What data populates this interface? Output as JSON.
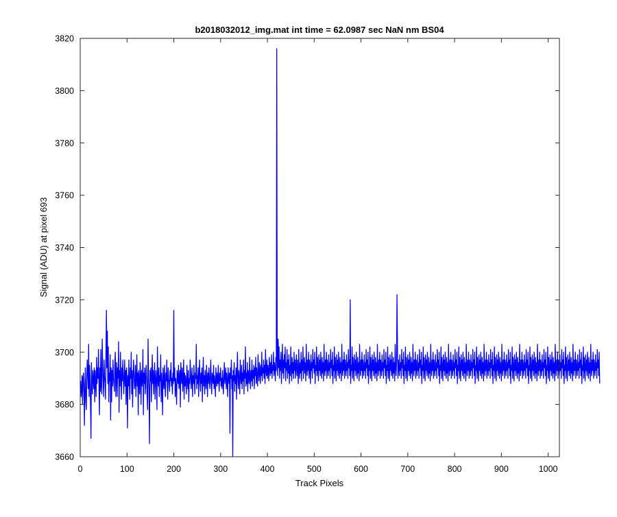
{
  "chart_data": {
    "type": "line",
    "title": "b2018032012_img.mat int time = 62.0987 sec  NaN nm BS04",
    "xlabel": "Track Pixels",
    "ylabel": "Signal (ADU) at pixel 693",
    "xlim": [
      0,
      1024
    ],
    "ylim": [
      3660,
      3820
    ],
    "xticks": [
      0,
      100,
      200,
      300,
      400,
      500,
      600,
      700,
      800,
      900,
      1000
    ],
    "yticks": [
      3660,
      3680,
      3700,
      3720,
      3740,
      3760,
      3780,
      3800,
      3820
    ],
    "grid": false,
    "box": true,
    "line_color": "#0000ff",
    "series": [
      {
        "x_start": 1,
        "x_step": 1,
        "y": [
          3689,
          3683,
          3686,
          3691,
          3680,
          3690,
          3692,
          3685,
          3672,
          3688,
          3694,
          3681,
          3678,
          3690,
          3697,
          3692,
          3686,
          3703,
          3683,
          3695,
          3690,
          3680,
          3667,
          3696,
          3688,
          3684,
          3693,
          3690,
          3686,
          3694,
          3681,
          3693,
          3688,
          3683,
          3698,
          3688,
          3694,
          3690,
          3701,
          3689,
          3676,
          3694,
          3685,
          3701,
          3687,
          3684,
          3705,
          3695,
          3689,
          3683,
          3697,
          3691,
          3688,
          3682,
          3700,
          3716,
          3694,
          3708,
          3688,
          3702,
          3681,
          3692,
          3689,
          3699,
          3674,
          3694,
          3681,
          3693,
          3687,
          3697,
          3690,
          3688,
          3685,
          3696,
          3700,
          3683,
          3690,
          3696,
          3683,
          3694,
          3690,
          3704,
          3677,
          3693,
          3687,
          3700,
          3690,
          3682,
          3694,
          3689,
          3697,
          3691,
          3684,
          3690,
          3697,
          3687,
          3693,
          3680,
          3694,
          3690,
          3671,
          3691,
          3687,
          3697,
          3688,
          3682,
          3694,
          3690,
          3700,
          3684,
          3693,
          3679,
          3690,
          3697,
          3692,
          3686,
          3688,
          3695,
          3683,
          3690,
          3699,
          3687,
          3692,
          3676,
          3693,
          3689,
          3684,
          3696,
          3691,
          3680,
          3693,
          3687,
          3690,
          3701,
          3676,
          3692,
          3688,
          3694,
          3684,
          3690,
          3695,
          3689,
          3683,
          3678,
          3705,
          3690,
          3686,
          3665,
          3693,
          3689,
          3694,
          3681,
          3690,
          3699,
          3688,
          3693,
          3684,
          3691,
          3696,
          3682,
          3689,
          3693,
          3687,
          3678,
          3702,
          3690,
          3687,
          3694,
          3683,
          3691,
          3689,
          3699,
          3681,
          3692,
          3688,
          3676,
          3694,
          3690,
          3686,
          3695,
          3688,
          3683,
          3692,
          3689,
          3697,
          3687,
          3682,
          3694,
          3690,
          3688,
          3685,
          3693,
          3689,
          3696,
          3687,
          3690,
          3684,
          3692,
          3688,
          3716,
          3689,
          3694,
          3683,
          3690,
          3687,
          3680,
          3693,
          3691,
          3688,
          3695,
          3686,
          3690,
          3693,
          3679,
          3696,
          3691,
          3688,
          3694,
          3685,
          3690,
          3697,
          3682,
          3692,
          3687,
          3691,
          3688,
          3684,
          3695,
          3690,
          3686,
          3693,
          3681,
          3690,
          3688,
          3697,
          3692,
          3686,
          3690,
          3694,
          3683,
          3691,
          3688,
          3695,
          3689,
          3684,
          3692,
          3690,
          3703,
          3686,
          3691,
          3688,
          3694,
          3683,
          3691,
          3697,
          3689,
          3685,
          3692,
          3688,
          3694,
          3681,
          3690,
          3698,
          3687,
          3691,
          3684,
          3693,
          3689,
          3686,
          3695,
          3690,
          3683,
          3692,
          3688,
          3694,
          3690,
          3686,
          3691,
          3697,
          3688,
          3684,
          3692,
          3690,
          3688,
          3695,
          3686,
          3691,
          3688,
          3683,
          3694,
          3690,
          3687,
          3692,
          3688,
          3695,
          3689,
          3685,
          3692,
          3689,
          3694,
          3687,
          3690,
          3686,
          3693,
          3689,
          3684,
          3691,
          3696,
          3688,
          3690,
          3694,
          3686,
          3692,
          3689,
          3683,
          3694,
          3690,
          3688,
          3692,
          3669,
          3694,
          3690,
          3697,
          3686,
          3691,
          3660,
          3693,
          3689,
          3696,
          3685,
          3691,
          3688,
          3694,
          3682,
          3692,
          3700,
          3689,
          3686,
          3693,
          3690,
          3684,
          3697,
          3691,
          3688,
          3695,
          3686,
          3692,
          3689,
          3697,
          3684,
          3693,
          3690,
          3702,
          3687,
          3692,
          3688,
          3696,
          3685,
          3693,
          3691,
          3688,
          3698,
          3690,
          3686,
          3693,
          3689,
          3697,
          3687,
          3693,
          3690,
          3695,
          3686,
          3694,
          3691,
          3698,
          3688,
          3694,
          3690,
          3687,
          3699,
          3692,
          3689,
          3696,
          3693,
          3688,
          3695,
          3691,
          3700,
          3689,
          3694,
          3692,
          3697,
          3690,
          3695,
          3688,
          3701,
          3693,
          3691,
          3697,
          3690,
          3695,
          3693,
          3689,
          3698,
          3694,
          3691,
          3696,
          3692,
          3699,
          3690,
          3695,
          3693,
          3700,
          3691,
          3696,
          3694,
          3689,
          3698,
          3693,
          3816,
          3697,
          3691,
          3705,
          3694,
          3702,
          3690,
          3697,
          3693,
          3700,
          3688,
          3695,
          3703,
          3692,
          3697,
          3690,
          3699,
          3694,
          3702,
          3689,
          3696,
          3693,
          3701,
          3690,
          3697,
          3692,
          3699,
          3688,
          3695,
          3691,
          3702,
          3694,
          3689,
          3698,
          3692,
          3696,
          3690,
          3700,
          3693,
          3697,
          3690,
          3695,
          3699,
          3691,
          3697,
          3693,
          3688,
          3701,
          3694,
          3690,
          3696,
          3692,
          3700,
          3689,
          3697,
          3693,
          3702,
          3690,
          3695,
          3698,
          3692,
          3696,
          3689,
          3703,
          3694,
          3691,
          3697,
          3693,
          3700,
          3690,
          3697,
          3694,
          3688,
          3699,
          3693,
          3696,
          3690,
          3701,
          3694,
          3697,
          3692,
          3700,
          3688,
          3695,
          3693,
          3702,
          3691,
          3698,
          3694,
          3689,
          3699,
          3693,
          3697,
          3691,
          3700,
          3694,
          3690,
          3698,
          3692,
          3696,
          3689,
          3703,
          3694,
          3691,
          3697,
          3693,
          3700,
          3690,
          3697,
          3694,
          3691,
          3699,
          3693,
          3696,
          3690,
          3701,
          3694,
          3697,
          3691,
          3700,
          3688,
          3695,
          3693,
          3702,
          3690,
          3698,
          3694,
          3689,
          3699,
          3693,
          3697,
          3691,
          3700,
          3694,
          3690,
          3698,
          3692,
          3696,
          3689,
          3703,
          3694,
          3691,
          3697,
          3693,
          3700,
          3690,
          3697,
          3694,
          3691,
          3699,
          3693,
          3696,
          3690,
          3701,
          3694,
          3697,
          3691,
          3720,
          3688,
          3695,
          3693,
          3702,
          3690,
          3698,
          3694,
          3689,
          3699,
          3693,
          3697,
          3691,
          3700,
          3694,
          3690,
          3698,
          3692,
          3696,
          3689,
          3703,
          3694,
          3691,
          3697,
          3693,
          3700,
          3690,
          3697,
          3694,
          3691,
          3699,
          3693,
          3696,
          3690,
          3701,
          3694,
          3697,
          3691,
          3700,
          3688,
          3695,
          3693,
          3702,
          3690,
          3698,
          3694,
          3689,
          3699,
          3693,
          3697,
          3691,
          3700,
          3694,
          3690,
          3698,
          3692,
          3696,
          3689,
          3703,
          3694,
          3691,
          3697,
          3693,
          3700,
          3690,
          3697,
          3694,
          3691,
          3699,
          3693,
          3696,
          3690,
          3701,
          3694,
          3697,
          3691,
          3700,
          3688,
          3695,
          3693,
          3702,
          3690,
          3698,
          3694,
          3689,
          3699,
          3693,
          3697,
          3691,
          3700,
          3694,
          3690,
          3698,
          3692,
          3696,
          3689,
          3703,
          3694,
          3691,
          3697,
          3722,
          3700,
          3690,
          3697,
          3694,
          3691,
          3699,
          3693,
          3696,
          3690,
          3701,
          3694,
          3697,
          3691,
          3700,
          3688,
          3695,
          3693,
          3702,
          3690,
          3698,
          3694,
          3689,
          3699,
          3693,
          3697,
          3691,
          3700,
          3694,
          3690,
          3698,
          3692,
          3696,
          3689,
          3703,
          3694,
          3691,
          3697,
          3693,
          3700,
          3690,
          3697,
          3694,
          3691,
          3699,
          3693,
          3696,
          3690,
          3701,
          3694,
          3697,
          3691,
          3700,
          3688,
          3695,
          3693,
          3702,
          3690,
          3698,
          3694,
          3689,
          3699,
          3693,
          3697,
          3691,
          3700,
          3694,
          3690,
          3698,
          3692,
          3696,
          3689,
          3703,
          3694,
          3691,
          3697,
          3693,
          3700,
          3690,
          3697,
          3694,
          3691,
          3699,
          3693,
          3696,
          3690,
          3701,
          3694,
          3697,
          3691,
          3700,
          3688,
          3695,
          3693,
          3702,
          3690,
          3698,
          3694,
          3689,
          3699,
          3693,
          3697,
          3691,
          3700,
          3694,
          3690,
          3698,
          3692,
          3696,
          3689,
          3703,
          3694,
          3691,
          3697,
          3693,
          3700,
          3690,
          3697,
          3694,
          3691,
          3699,
          3693,
          3696,
          3690,
          3701,
          3694,
          3697,
          3691,
          3700,
          3688,
          3695,
          3693,
          3702,
          3690,
          3698,
          3694,
          3689,
          3699,
          3693,
          3697,
          3691,
          3700,
          3694,
          3690,
          3698,
          3692,
          3696,
          3689,
          3703,
          3694,
          3691,
          3697,
          3693,
          3700,
          3690,
          3697,
          3694,
          3691,
          3699,
          3693,
          3696,
          3690,
          3701,
          3694,
          3697,
          3691,
          3700,
          3688,
          3695,
          3693,
          3702,
          3690,
          3698,
          3694,
          3689,
          3699,
          3693,
          3697,
          3691,
          3700,
          3694,
          3690,
          3698,
          3692,
          3696,
          3689,
          3703,
          3694,
          3691,
          3697,
          3693,
          3700,
          3690,
          3697,
          3694,
          3691,
          3699,
          3693,
          3696,
          3690,
          3701,
          3694,
          3697,
          3691,
          3700,
          3688,
          3695,
          3693,
          3702,
          3690,
          3698,
          3694,
          3689,
          3699,
          3693,
          3697,
          3691,
          3700,
          3694,
          3690,
          3698,
          3692,
          3696,
          3689,
          3703,
          3694,
          3691,
          3697,
          3693,
          3700,
          3690,
          3697,
          3694,
          3691,
          3699,
          3693,
          3696,
          3690,
          3701,
          3694,
          3697,
          3691,
          3700,
          3688,
          3695,
          3693,
          3702,
          3690,
          3698,
          3694,
          3689,
          3699,
          3693,
          3697,
          3691,
          3700,
          3694,
          3690,
          3698,
          3692,
          3696,
          3689,
          3703,
          3694,
          3691,
          3697,
          3693,
          3700,
          3690,
          3697,
          3694,
          3691,
          3699,
          3693,
          3696,
          3690,
          3701,
          3694,
          3697,
          3691,
          3700,
          3688,
          3695,
          3693,
          3702,
          3690,
          3698,
          3694,
          3689,
          3699,
          3693,
          3697,
          3691,
          3700,
          3694,
          3690,
          3698,
          3692,
          3696,
          3689,
          3703,
          3694,
          3691,
          3697,
          3693,
          3700,
          3690,
          3697,
          3694,
          3691,
          3699,
          3693,
          3696,
          3690,
          3701,
          3694,
          3697,
          3691,
          3700,
          3688,
          3695,
          3693,
          3702,
          3690,
          3698,
          3694,
          3689,
          3699,
          3693,
          3697,
          3691,
          3700,
          3694,
          3690,
          3698,
          3692,
          3696,
          3689,
          3703,
          3694,
          3691,
          3697,
          3693,
          3700,
          3690,
          3697,
          3694,
          3691,
          3699,
          3693,
          3696,
          3690,
          3701,
          3694,
          3697,
          3691,
          3700,
          3688,
          3695,
          3693,
          3702,
          3690,
          3698,
          3694,
          3689,
          3699,
          3693,
          3697,
          3691,
          3700,
          3694,
          3690,
          3698,
          3692,
          3696,
          3689,
          3703,
          3694,
          3691,
          3697,
          3693,
          3700,
          3690,
          3697,
          3694,
          3691,
          3699,
          3693,
          3696,
          3690,
          3701,
          3694,
          3697,
          3691,
          3700,
          3688,
          3695,
          3693,
          3702,
          3690,
          3698,
          3694,
          3689,
          3699,
          3693,
          3697,
          3691,
          3700,
          3694,
          3690,
          3698,
          3692,
          3696,
          3689,
          3703,
          3694,
          3691,
          3697,
          3693,
          3700,
          3690,
          3697,
          3694,
          3691,
          3699,
          3693,
          3696,
          3690,
          3701,
          3694,
          3697,
          3691,
          3700,
          3688
        ]
      }
    ]
  }
}
